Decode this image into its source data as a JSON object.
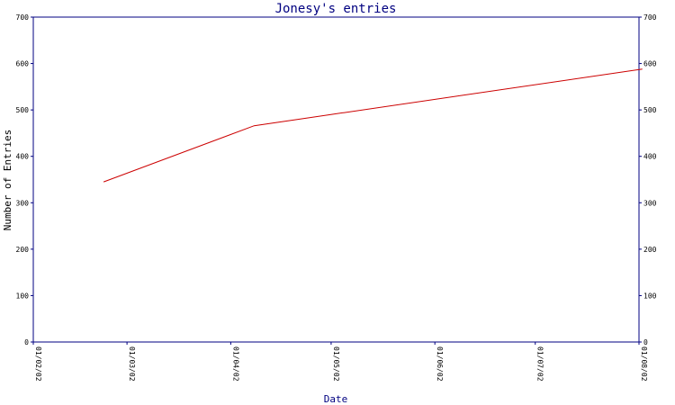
{
  "chart_data": {
    "type": "line",
    "title": "Jonesy's entries",
    "xlabel": "Date",
    "ylabel": "Number of Entries",
    "x_ticks": [
      "01/02/02",
      "01/03/02",
      "01/04/02",
      "01/05/02",
      "01/06/02",
      "01/07/02",
      "01/08/02"
    ],
    "y_ticks": [
      0,
      100,
      200,
      300,
      400,
      500,
      600,
      700
    ],
    "ylim": [
      0,
      700
    ],
    "xlim": [
      "01/02/02",
      "01/08/02"
    ],
    "grid": false,
    "series": [
      {
        "color": "#cc0000",
        "points": [
          {
            "x": "2002-02-22",
            "y": 345
          },
          {
            "x": "2002-04-08",
            "y": 466
          },
          {
            "x": "2002-08-02",
            "y": 588
          }
        ]
      }
    ]
  },
  "colors": {
    "axis": "#000080",
    "title": "#000080",
    "line": "#cc0000"
  }
}
